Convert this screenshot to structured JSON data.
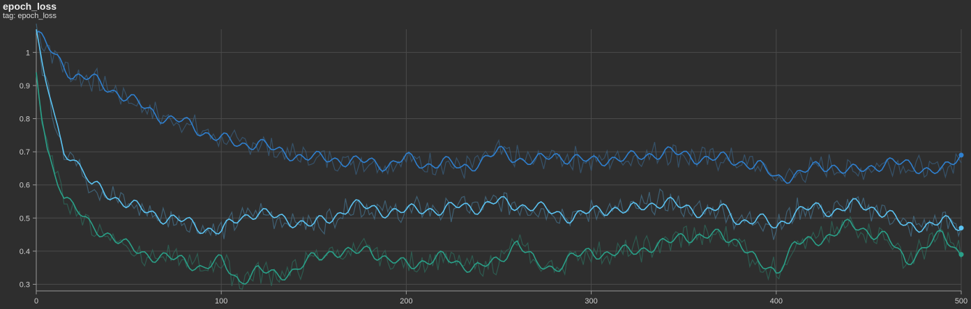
{
  "header": {
    "title": "epoch_loss",
    "subtitle": "tag: epoch_loss"
  },
  "chart_data": {
    "type": "line",
    "title": "epoch_loss",
    "subtitle": "tag: epoch_loss",
    "xlabel": "",
    "ylabel": "",
    "xlim": [
      0,
      500
    ],
    "ylim": [
      0.28,
      1.07
    ],
    "x_ticks": [
      0,
      100,
      200,
      300,
      400,
      500
    ],
    "y_ticks": [
      0.3,
      0.4,
      0.5,
      0.6,
      0.7,
      0.8,
      0.9,
      1
    ],
    "grid": true,
    "legend": "none",
    "series": [
      {
        "color": "#2f80d0",
        "raw_color": "#3a5f7f",
        "x": [
          0,
          10,
          20,
          30,
          40,
          50,
          60,
          70,
          80,
          90,
          100,
          110,
          120,
          130,
          140,
          150,
          160,
          170,
          180,
          190,
          200,
          210,
          220,
          230,
          240,
          250,
          260,
          270,
          280,
          290,
          300,
          310,
          320,
          330,
          340,
          350,
          360,
          370,
          380,
          390,
          400,
          410,
          420,
          430,
          440,
          450,
          460,
          470,
          480,
          490,
          500
        ],
        "values": [
          1.06,
          0.99,
          0.93,
          0.92,
          0.89,
          0.86,
          0.83,
          0.8,
          0.79,
          0.76,
          0.74,
          0.72,
          0.73,
          0.7,
          0.69,
          0.68,
          0.68,
          0.67,
          0.67,
          0.66,
          0.68,
          0.66,
          0.67,
          0.65,
          0.67,
          0.7,
          0.68,
          0.67,
          0.69,
          0.68,
          0.67,
          0.68,
          0.68,
          0.69,
          0.7,
          0.69,
          0.68,
          0.68,
          0.67,
          0.66,
          0.62,
          0.63,
          0.65,
          0.66,
          0.64,
          0.65,
          0.67,
          0.66,
          0.65,
          0.64,
          0.69
        ]
      },
      {
        "color": "#5bc3f2",
        "raw_color": "#45718c",
        "x": [
          0,
          5,
          10,
          15,
          20,
          25,
          30,
          40,
          50,
          60,
          70,
          80,
          90,
          100,
          110,
          120,
          130,
          140,
          150,
          160,
          170,
          180,
          190,
          200,
          210,
          220,
          230,
          240,
          250,
          260,
          270,
          280,
          290,
          300,
          310,
          320,
          330,
          340,
          350,
          360,
          370,
          380,
          390,
          400,
          410,
          420,
          430,
          440,
          450,
          460,
          470,
          480,
          490,
          500
        ],
        "values": [
          1.05,
          0.92,
          0.8,
          0.71,
          0.68,
          0.64,
          0.6,
          0.57,
          0.54,
          0.52,
          0.5,
          0.49,
          0.47,
          0.46,
          0.5,
          0.52,
          0.5,
          0.49,
          0.48,
          0.5,
          0.54,
          0.53,
          0.52,
          0.52,
          0.53,
          0.52,
          0.54,
          0.53,
          0.55,
          0.54,
          0.53,
          0.52,
          0.5,
          0.52,
          0.53,
          0.52,
          0.54,
          0.55,
          0.53,
          0.52,
          0.53,
          0.49,
          0.5,
          0.47,
          0.52,
          0.53,
          0.52,
          0.54,
          0.53,
          0.52,
          0.47,
          0.48,
          0.49,
          0.47
        ]
      },
      {
        "color": "#2aa189",
        "raw_color": "#2e6b5c",
        "x": [
          0,
          3,
          6,
          10,
          15,
          20,
          25,
          30,
          40,
          50,
          60,
          70,
          80,
          90,
          100,
          110,
          120,
          130,
          140,
          150,
          160,
          170,
          180,
          190,
          200,
          210,
          220,
          230,
          240,
          250,
          260,
          270,
          280,
          290,
          300,
          310,
          320,
          330,
          340,
          350,
          360,
          370,
          380,
          390,
          400,
          410,
          420,
          430,
          440,
          450,
          460,
          470,
          480,
          490,
          500
        ],
        "values": [
          0.94,
          0.8,
          0.7,
          0.65,
          0.56,
          0.54,
          0.5,
          0.47,
          0.45,
          0.41,
          0.39,
          0.38,
          0.37,
          0.35,
          0.37,
          0.31,
          0.34,
          0.33,
          0.34,
          0.38,
          0.4,
          0.39,
          0.41,
          0.37,
          0.36,
          0.37,
          0.38,
          0.36,
          0.35,
          0.37,
          0.43,
          0.36,
          0.35,
          0.38,
          0.4,
          0.39,
          0.4,
          0.41,
          0.42,
          0.45,
          0.44,
          0.45,
          0.43,
          0.36,
          0.34,
          0.42,
          0.43,
          0.45,
          0.48,
          0.46,
          0.44,
          0.37,
          0.41,
          0.45,
          0.39
        ]
      }
    ]
  }
}
